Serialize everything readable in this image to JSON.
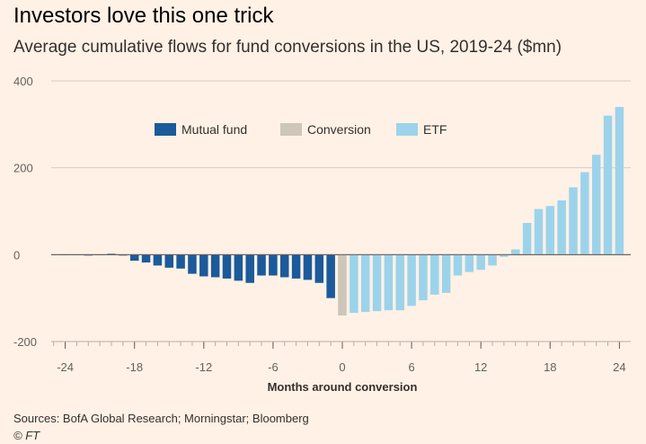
{
  "header": {
    "title": "Investors love this one trick",
    "subtitle": "Average cumulative flows for fund conversions in the US, 2019-24 ($mn)"
  },
  "footer": {
    "sources": "Sources: BofA Global Research; Morningstar; Bloomberg",
    "credit": "© FT"
  },
  "colors": {
    "background": "#FFF1E5",
    "mutual_fund": "#1B5A9B",
    "conversion": "#CEC6B9",
    "etf": "#9CD3EB"
  },
  "chart_data": {
    "type": "bar",
    "xlabel": "Months around conversion",
    "ylabel": "",
    "xlim": [
      -25,
      25
    ],
    "ylim": [
      -200,
      400
    ],
    "xticks": [
      -24,
      -18,
      -12,
      -6,
      0,
      6,
      12,
      18,
      24
    ],
    "yticks": [
      -200,
      0,
      200,
      400
    ],
    "legend_position": "top-left",
    "legend": [
      {
        "name": "Mutual fund",
        "color": "#1B5A9B"
      },
      {
        "name": "Conversion",
        "color": "#CEC6B9"
      },
      {
        "name": "ETF",
        "color": "#9CD3EB"
      }
    ],
    "series": [
      {
        "name": "Mutual fund",
        "color": "#1B5A9B",
        "x": [
          -24,
          -23,
          -22,
          -21,
          -20,
          -19,
          -18,
          -17,
          -16,
          -15,
          -14,
          -13,
          -12,
          -11,
          -10,
          -9,
          -8,
          -7,
          -6,
          -5,
          -4,
          -3,
          -2,
          -1
        ],
        "values": [
          -1,
          -1,
          -2,
          -1,
          2,
          -2,
          -14,
          -18,
          -25,
          -30,
          -32,
          -44,
          -50,
          -52,
          -55,
          -60,
          -65,
          -48,
          -48,
          -52,
          -55,
          -58,
          -65,
          -100
        ]
      },
      {
        "name": "Conversion",
        "color": "#CEC6B9",
        "x": [
          0
        ],
        "values": [
          -140
        ]
      },
      {
        "name": "ETF",
        "color": "#9CD3EB",
        "x": [
          1,
          2,
          3,
          4,
          5,
          6,
          7,
          8,
          9,
          10,
          11,
          12,
          13,
          14,
          15,
          16,
          17,
          18,
          19,
          20,
          21,
          22,
          23,
          24
        ],
        "values": [
          -134,
          -132,
          -130,
          -128,
          -128,
          -118,
          -105,
          -92,
          -88,
          -48,
          -40,
          -35,
          -25,
          -5,
          12,
          73,
          105,
          112,
          125,
          155,
          190,
          230,
          320,
          340
        ]
      }
    ]
  }
}
